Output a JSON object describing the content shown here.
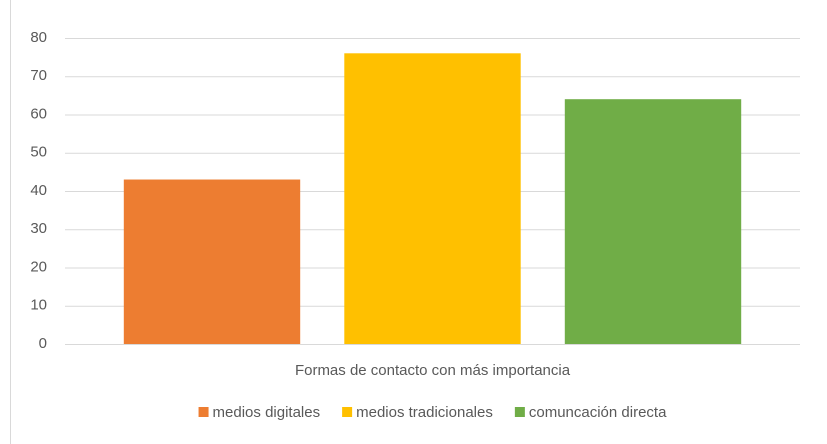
{
  "chart_data": {
    "type": "bar",
    "categories": [
      "Formas de contacto con más importancia"
    ],
    "series": [
      {
        "name": "medios digitales",
        "color": "#ed7d31",
        "values": [
          43
        ]
      },
      {
        "name": "medios tradicionales",
        "color": "#ffc000",
        "values": [
          76
        ]
      },
      {
        "name": "comuncación directa",
        "color": "#70ad47",
        "values": [
          64
        ]
      }
    ],
    "ylim": [
      0,
      80
    ],
    "yticks": [
      0,
      10,
      20,
      30,
      40,
      50,
      60,
      70,
      80
    ],
    "grid": true,
    "legend": "bottom"
  }
}
